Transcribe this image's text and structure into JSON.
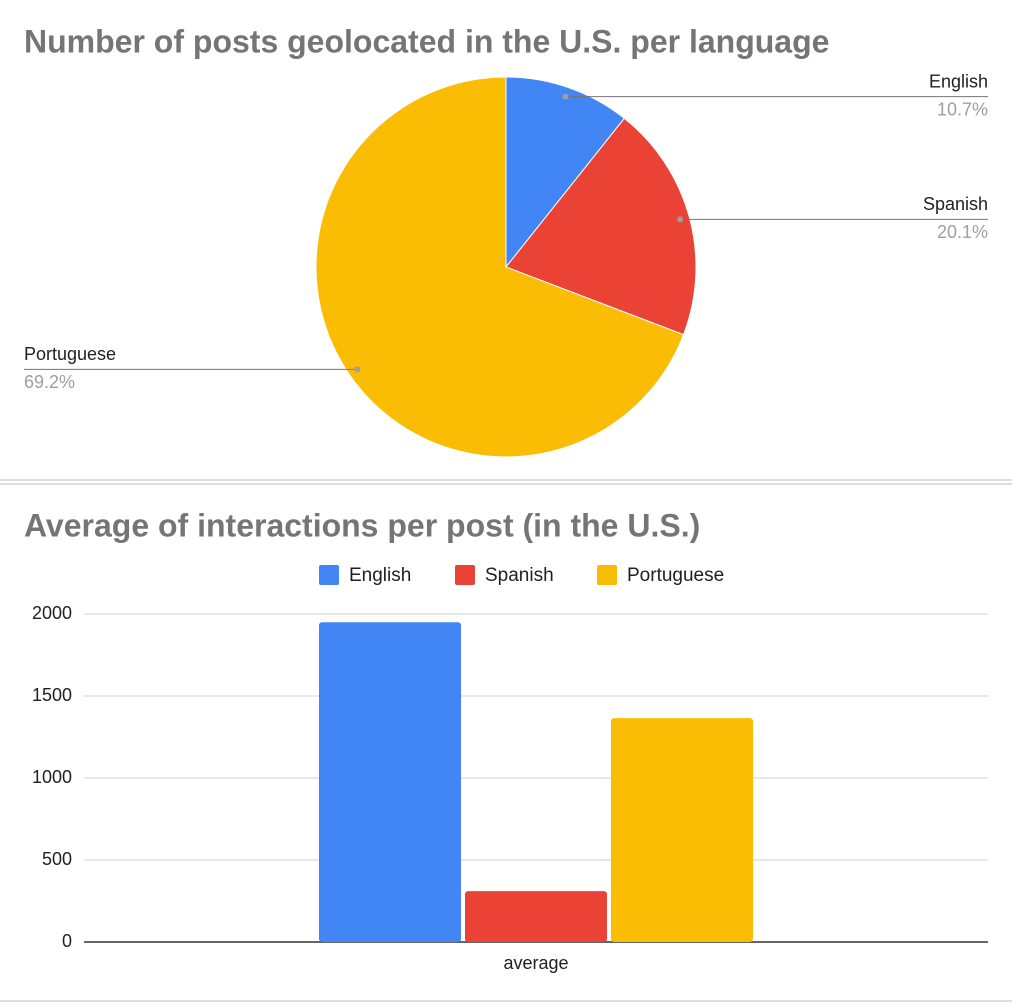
{
  "chart_data": [
    {
      "type": "pie",
      "title": "Number of posts geolocated in the U.S. per language",
      "categories": [
        "English",
        "Spanish",
        "Portuguese"
      ],
      "values": [
        10.7,
        20.1,
        69.2
      ],
      "value_labels": [
        "10.7%",
        "20.1%",
        "69.2%"
      ],
      "colors": [
        "#4285f4",
        "#ea4335",
        "#fbbc04"
      ]
    },
    {
      "type": "bar",
      "title": "Average of interactions per post (in the U.S.)",
      "categories": [
        "average"
      ],
      "series": [
        {
          "name": "English",
          "color": "#4285f4",
          "values": [
            1950
          ]
        },
        {
          "name": "Spanish",
          "color": "#ea4335",
          "values": [
            310
          ]
        },
        {
          "name": "Portuguese",
          "color": "#fbbc04",
          "values": [
            1365
          ]
        }
      ],
      "ylim": [
        0,
        2000
      ],
      "yticks": [
        0,
        500,
        1000,
        1500,
        2000
      ],
      "grid": true,
      "legend": "top"
    }
  ]
}
